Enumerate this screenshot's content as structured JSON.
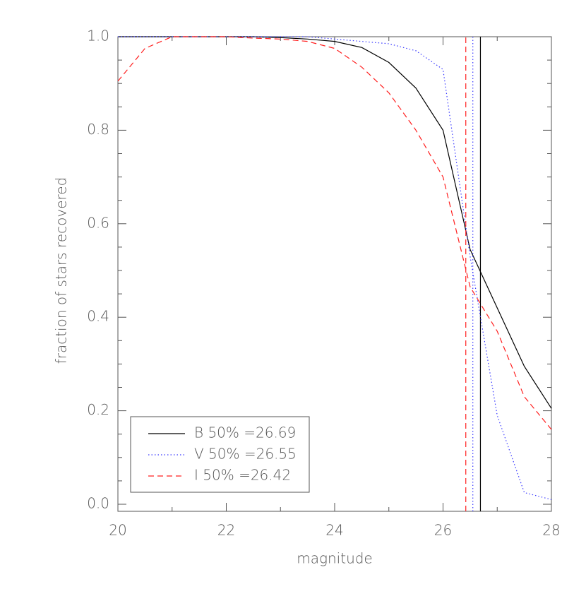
{
  "chart_data": {
    "type": "line",
    "xlabel": "magnitude",
    "ylabel": "fraction of stars recovered",
    "x": [
      20,
      20.5,
      21,
      21.5,
      22,
      22.5,
      23,
      23.5,
      24,
      24.5,
      25,
      25.5,
      26,
      26.5,
      27,
      27.5,
      28
    ],
    "series": [
      {
        "name": "B 50% =26.69",
        "half": 26.69,
        "color": "#000000",
        "dash": "none",
        "values": [
          1.0,
          1.0,
          1.0,
          1.0,
          1.0,
          1.0,
          0.998,
          0.995,
          0.99,
          0.977,
          0.945,
          0.89,
          0.8,
          0.545,
          0.42,
          0.295,
          0.205
        ]
      },
      {
        "name": "V 50% =26.55",
        "half": 26.55,
        "color": "#3b3bff",
        "dash": "1.5 3",
        "values": [
          1.0,
          1.0,
          1.0,
          1.0,
          1.0,
          1.0,
          1.0,
          1.0,
          0.995,
          0.99,
          0.985,
          0.97,
          0.93,
          0.53,
          0.19,
          0.025,
          0.01
        ]
      },
      {
        "name": "I 50% =26.42",
        "half": 26.42,
        "color": "#ff2020",
        "dash": "8 5",
        "values": [
          0.905,
          0.975,
          1.0,
          1.0,
          1.0,
          0.997,
          0.995,
          0.99,
          0.975,
          0.935,
          0.88,
          0.8,
          0.7,
          0.465,
          0.37,
          0.23,
          0.16
        ]
      }
    ],
    "xlim": [
      20,
      28
    ],
    "xticks": [
      20,
      22,
      24,
      26,
      28
    ],
    "ylim": [
      0,
      1
    ],
    "yticks": [
      {
        "value": 0,
        "label": "0.0"
      },
      {
        "value": 0.2,
        "label": "0.2"
      },
      {
        "value": 0.4,
        "label": "0.4"
      },
      {
        "value": 0.6,
        "label": "0.6"
      },
      {
        "value": 0.8,
        "label": "0.8"
      },
      {
        "value": 1,
        "label": "1.0"
      }
    ],
    "legend": "lower left"
  }
}
